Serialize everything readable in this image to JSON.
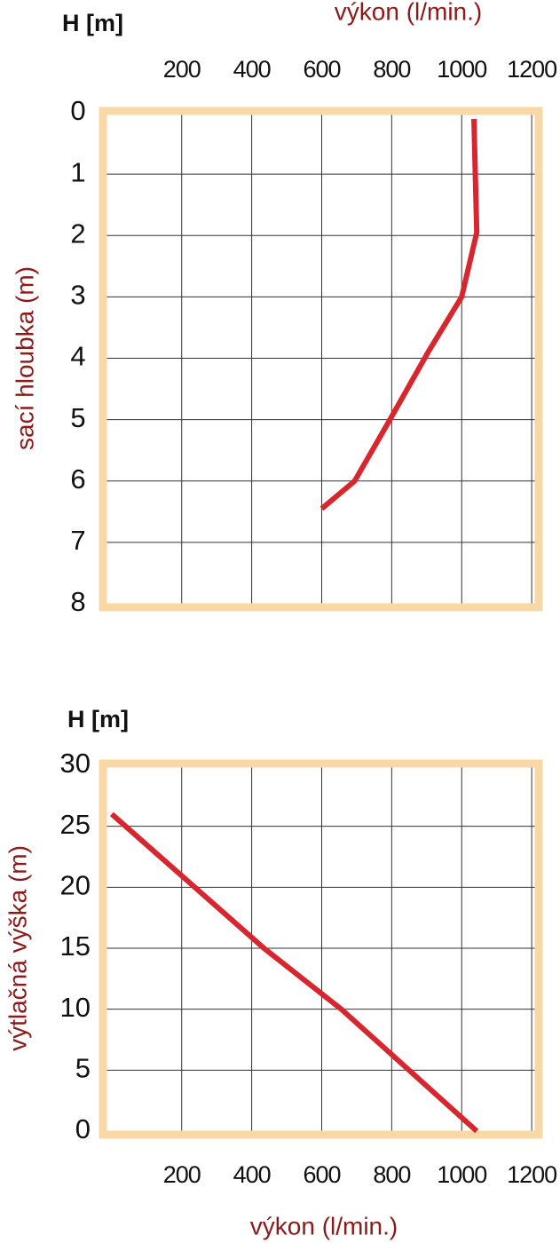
{
  "chart_data": [
    {
      "type": "line",
      "y_unit_label": "H [m]",
      "x_label": "výkon (l/min.)",
      "y_label": "sací hloubka (m)",
      "x_axis_position": "top",
      "y_inverted": true,
      "x": [
        1035,
        1043,
        1000,
        904,
        795,
        694,
        600
      ],
      "values": [
        0.1,
        1.95,
        3,
        3.9,
        5,
        6,
        6.45
      ],
      "color": "#d7262e",
      "frame_color": "#f9d8a6",
      "grid": true,
      "xlim": [
        -25,
        1220
      ],
      "xticks": [
        200,
        400,
        600,
        800,
        1000,
        1200
      ],
      "ylim": [
        0,
        8
      ],
      "yticks": [
        0,
        1,
        2,
        3,
        4,
        5,
        6,
        7,
        8
      ]
    },
    {
      "type": "line",
      "y_unit_label": "H [m]",
      "x_label": "výkon (l/min.)",
      "y_label": "výtlačná výška (m)",
      "x_axis_position": "bottom",
      "y_inverted": false,
      "x": [
        0,
        435,
        656,
        1043
      ],
      "values": [
        26,
        15,
        10,
        0
      ],
      "color": "#d7262e",
      "frame_color": "#f9d8a6",
      "grid": true,
      "xlim": [
        -25,
        1220
      ],
      "xticks": [
        200,
        400,
        600,
        800,
        1000,
        1200
      ],
      "ylim": [
        0,
        30
      ],
      "yticks": [
        0,
        5,
        10,
        15,
        20,
        25,
        30
      ]
    }
  ]
}
